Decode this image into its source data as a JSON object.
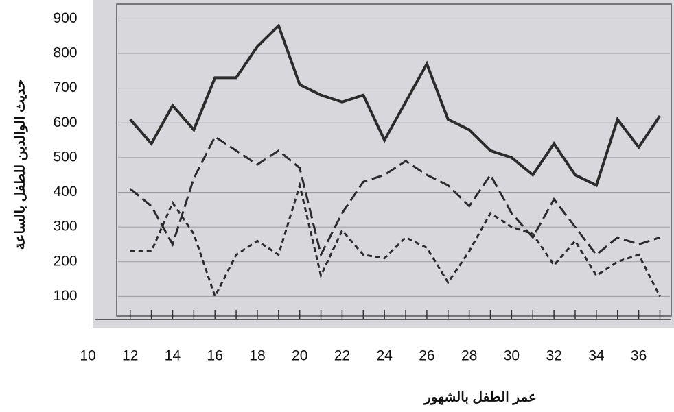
{
  "chart_data": {
    "type": "line",
    "x_label": "عمر الطفل بالشهور",
    "y_label": "حديث الوالدين للطفل بالساعة",
    "x": [
      12,
      13,
      14,
      15,
      16,
      17,
      18,
      19,
      20,
      21,
      22,
      23,
      24,
      25,
      26,
      27,
      28,
      29,
      30,
      31,
      32,
      33,
      34,
      35,
      36,
      37
    ],
    "series": [
      {
        "color": "#2b2b2b",
        "line_style": "solid",
        "values": [
          610,
          540,
          650,
          580,
          730,
          730,
          820,
          880,
          710,
          680,
          660,
          680,
          550,
          660,
          770,
          610,
          580,
          520,
          500,
          450,
          540,
          450,
          420,
          610,
          530,
          620
        ]
      },
      {
        "color": "#2b2b2b",
        "line_style": "long-dash",
        "values": [
          410,
          360,
          250,
          440,
          560,
          520,
          480,
          520,
          470,
          220,
          340,
          430,
          450,
          490,
          450,
          420,
          360,
          450,
          340,
          270,
          380,
          300,
          220,
          270,
          250,
          270
        ]
      },
      {
        "color": "#2b2b2b",
        "line_style": "short-dash",
        "values": [
          230,
          230,
          370,
          280,
          100,
          220,
          260,
          220,
          420,
          160,
          290,
          220,
          210,
          270,
          240,
          140,
          230,
          340,
          300,
          280,
          190,
          260,
          160,
          200,
          220,
          100
        ]
      }
    ],
    "xlim": [
      10,
      37.6
    ],
    "xticks": [
      10,
      12,
      14,
      16,
      18,
      20,
      22,
      24,
      26,
      28,
      30,
      32,
      34,
      36
    ],
    "ylim": [
      0,
      950
    ],
    "yticks": [
      100,
      200,
      300,
      400,
      500,
      600,
      700,
      800,
      900
    ],
    "grid": true
  }
}
